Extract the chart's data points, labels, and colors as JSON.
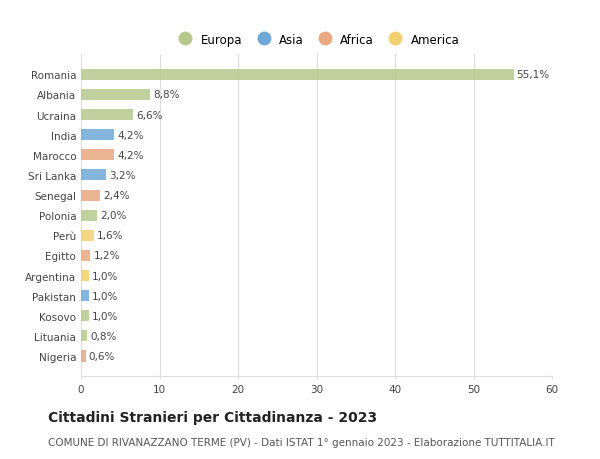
{
  "countries": [
    "Romania",
    "Albania",
    "Ucraina",
    "India",
    "Marocco",
    "Sri Lanka",
    "Senegal",
    "Polonia",
    "Perù",
    "Egitto",
    "Argentina",
    "Pakistan",
    "Kosovo",
    "Lituania",
    "Nigeria"
  ],
  "values": [
    55.1,
    8.8,
    6.6,
    4.2,
    4.2,
    3.2,
    2.4,
    2.0,
    1.6,
    1.2,
    1.0,
    1.0,
    1.0,
    0.8,
    0.6
  ],
  "labels": [
    "55,1%",
    "8,8%",
    "6,6%",
    "4,2%",
    "4,2%",
    "3,2%",
    "2,4%",
    "2,0%",
    "1,6%",
    "1,2%",
    "1,0%",
    "1,0%",
    "1,0%",
    "0,8%",
    "0,6%"
  ],
  "continents": [
    "Europa",
    "Europa",
    "Europa",
    "Asia",
    "Africa",
    "Asia",
    "Africa",
    "Europa",
    "America",
    "Africa",
    "America",
    "Asia",
    "Europa",
    "Europa",
    "Africa"
  ],
  "colors": {
    "Europa": "#b5c98e",
    "Asia": "#6fa8d6",
    "Africa": "#e8a882",
    "America": "#f0d070"
  },
  "xlim": [
    0,
    60
  ],
  "xticks": [
    0,
    10,
    20,
    30,
    40,
    50,
    60
  ],
  "title": "Cittadini Stranieri per Cittadinanza - 2023",
  "subtitle": "COMUNE DI RIVANAZZANO TERME (PV) - Dati ISTAT 1° gennaio 2023 - Elaborazione TUTTITALIA.IT",
  "background_color": "#ffffff",
  "grid_color": "#dddddd",
  "bar_height": 0.55,
  "label_fontsize": 7.5,
  "tick_fontsize": 7.5,
  "title_fontsize": 10,
  "subtitle_fontsize": 7.5,
  "legend_fontsize": 8.5,
  "legend_entries": [
    "Europa",
    "Asia",
    "Africa",
    "America"
  ],
  "legend_colors": [
    "#b5c98e",
    "#6fa8d6",
    "#e8a882",
    "#f0d070"
  ]
}
